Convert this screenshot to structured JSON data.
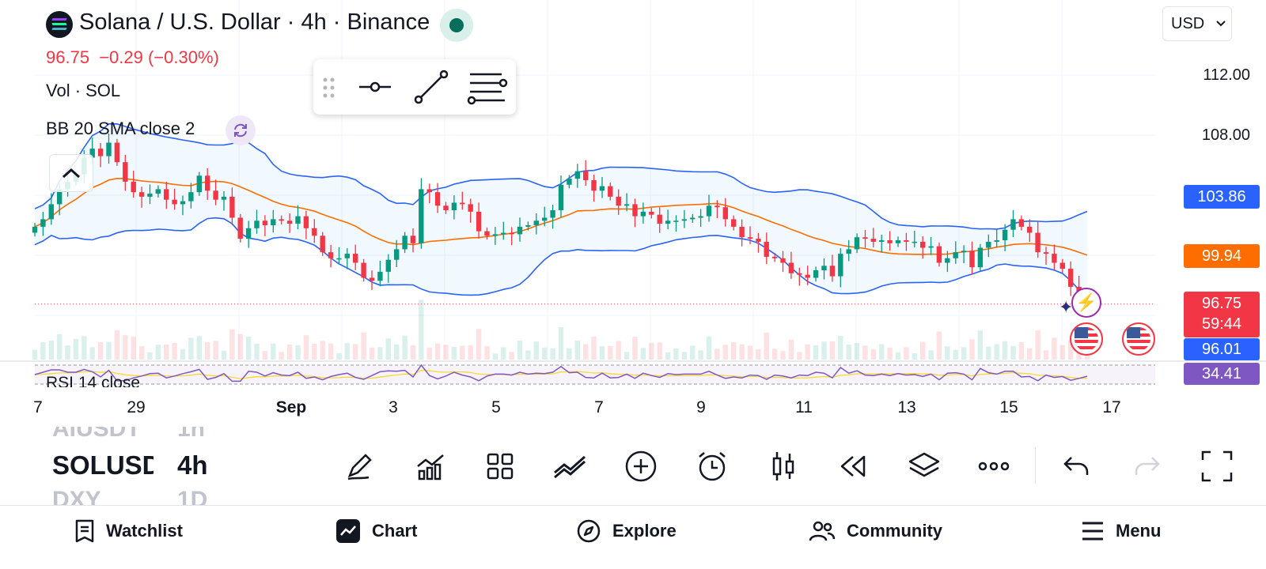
{
  "header": {
    "symbol_title": "Solana / U.S. Dollar · 4h · Binance",
    "last_price": "96.75",
    "change": "−0.29 (−0.30%)",
    "vol_label": "Vol · SOL",
    "bb_label": "BB 20 SMA close 2",
    "rsi_label": "RSI 14 close",
    "currency": "USD",
    "market_status_icon": "market-open-dot"
  },
  "price_axis": {
    "ticks": [
      "112.00",
      "108.00"
    ],
    "labels": {
      "bb_upper": "103.86",
      "bb_basis": "99.94",
      "last": "96.75",
      "countdown": "59:44",
      "bb_lower": "96.01",
      "rsi": "34.41"
    }
  },
  "date_axis": [
    "7",
    "29",
    "Sep",
    "3",
    "5",
    "7",
    "9",
    "11",
    "13",
    "15",
    "17"
  ],
  "symbol_picker": {
    "rows": [
      {
        "symbol": "AIUSDT",
        "interval": "1h"
      },
      {
        "symbol": "SOLUSD",
        "interval": "4h"
      },
      {
        "symbol": "DXY",
        "interval": "1D"
      }
    ]
  },
  "toolbar": [
    "pencil-icon",
    "indicators-icon",
    "grid-icon",
    "compare-icon",
    "add-icon",
    "alarm-icon",
    "candle-type-icon",
    "replay-icon",
    "layers-icon",
    "more-icon",
    "undo-icon",
    "redo-icon",
    "fullscreen-icon"
  ],
  "drawing_toolbar": [
    "drag-handle-icon",
    "horizontal-ray-icon",
    "trend-line-icon",
    "fib-retracement-icon"
  ],
  "bottom_nav": [
    {
      "label": "Watchlist",
      "icon": "watchlist-icon"
    },
    {
      "label": "Chart",
      "icon": "chart-icon"
    },
    {
      "label": "Explore",
      "icon": "compass-icon"
    },
    {
      "label": "Community",
      "icon": "community-icon"
    },
    {
      "label": "Menu",
      "icon": "menu-icon"
    }
  ],
  "colors": {
    "up": "#089981",
    "down": "#f23645",
    "bb_band": "#2962ff",
    "bb_basis": "#ff6d00",
    "rsi": "#7e57c2",
    "accent": "#2962ff"
  },
  "chart_data": {
    "type": "candlestick",
    "symbol": "SOLUSD",
    "interval": "4h",
    "ylim": [
      95.5,
      113
    ],
    "x_ticks": [
      "7",
      "29",
      "Sep",
      "3",
      "5",
      "7",
      "9",
      "11",
      "13",
      "15",
      "17"
    ],
    "closes": [
      101.9,
      102.4,
      103.4,
      104.4,
      104.9,
      105.4,
      106.5,
      107.1,
      106.6,
      107.5,
      106.2,
      104.9,
      104.2,
      103.9,
      104.1,
      104.4,
      103.7,
      103.4,
      103.6,
      104.2,
      105.3,
      104.3,
      103.7,
      103.9,
      102.5,
      101.1,
      101.8,
      102.3,
      102.0,
      102.4,
      102.3,
      102.1,
      102.6,
      101.8,
      101.3,
      100.2,
      99.8,
      99.8,
      100.1,
      99.5,
      98.5,
      98.3,
      98.9,
      99.7,
      100.4,
      101.3,
      100.8,
      104.4,
      104.2,
      103.3,
      103.0,
      103.5,
      103.4,
      102.9,
      101.6,
      101.3,
      101.4,
      101.5,
      101.4,
      101.9,
      102.0,
      102.3,
      102.5,
      103.0,
      104.7,
      105.1,
      105.6,
      105.0,
      104.3,
      104.6,
      103.9,
      103.3,
      103.4,
      102.6,
      102.9,
      102.7,
      102.1,
      102.3,
      102.3,
      102.4,
      102.5,
      102.6,
      103.3,
      103.2,
      102.4,
      101.9,
      101.2,
      101.1,
      100.9,
      99.9,
      99.8,
      99.5,
      98.8,
      98.7,
      98.5,
      99.0,
      99.3,
      98.6,
      100.1,
      100.4,
      101.2,
      101.1,
      100.9,
      101.0,
      100.8,
      101.0,
      100.9,
      100.9,
      100.5,
      100.6,
      99.5,
      99.8,
      100.2,
      100.3,
      99.2,
      100.5,
      100.9,
      101.0,
      101.7,
      102.4,
      101.9,
      101.5,
      100.2,
      100.1,
      99.5,
      99.1,
      97.9,
      97.1,
      96.75
    ]
  }
}
